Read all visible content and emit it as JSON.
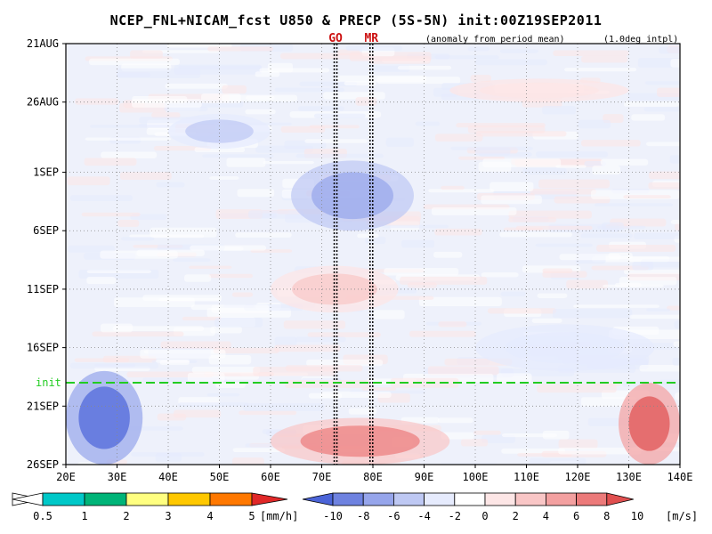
{
  "chart_data": {
    "type": "heatmap",
    "title": "NCEP_FNL+NICAM_fcst U850 & PRECP (5S-5N) init:00Z19SEP2011",
    "subtitle_left": "(anomaly from period mean)",
    "subtitle_right": "(1.0deg intpl)",
    "x_axis": {
      "range": [
        20,
        140
      ],
      "ticks": [
        {
          "value": 20,
          "label": "20E"
        },
        {
          "value": 30,
          "label": "30E"
        },
        {
          "value": 40,
          "label": "40E"
        },
        {
          "value": 50,
          "label": "50E"
        },
        {
          "value": 60,
          "label": "60E"
        },
        {
          "value": 70,
          "label": "70E"
        },
        {
          "value": 80,
          "label": "80E"
        },
        {
          "value": 90,
          "label": "90E"
        },
        {
          "value": 100,
          "label": "100E"
        },
        {
          "value": 110,
          "label": "110E"
        },
        {
          "value": 120,
          "label": "120E"
        },
        {
          "value": 130,
          "label": "130E"
        },
        {
          "value": 140,
          "label": "140E"
        }
      ]
    },
    "y_axis": {
      "range_days": [
        0,
        36
      ],
      "ticks": [
        {
          "value": 0,
          "label": "21AUG"
        },
        {
          "value": 5,
          "label": "26AUG"
        },
        {
          "value": 11,
          "label": "1SEP"
        },
        {
          "value": 16,
          "label": "6SEP"
        },
        {
          "value": 21,
          "label": "11SEP"
        },
        {
          "value": 26,
          "label": "16SEP"
        },
        {
          "value": 31,
          "label": "21SEP"
        },
        {
          "value": 36,
          "label": "26SEP"
        }
      ]
    },
    "init_line": {
      "label": "init",
      "value": 29,
      "color": "#22cc22"
    },
    "vertical_markers": [
      {
        "label": "GO",
        "lon": 72.7,
        "color": "#cc1111"
      },
      {
        "label": "MR",
        "lon": 79.7,
        "color": "#cc1111"
      }
    ],
    "wind_anomaly_features": [
      {
        "lon": [
          20,
          35
        ],
        "day": [
          28,
          36
        ],
        "value": -10
      },
      {
        "lon": [
          64,
          88
        ],
        "day": [
          10,
          16
        ],
        "value": -7
      },
      {
        "lon": [
          40,
          60
        ],
        "day": [
          6,
          9
        ],
        "value": -5
      },
      {
        "lon": [
          100,
          135
        ],
        "day": [
          24,
          28
        ],
        "value": -3
      },
      {
        "lon": [
          60,
          95
        ],
        "day": [
          32,
          36
        ],
        "value": 8
      },
      {
        "lon": [
          128,
          140
        ],
        "day": [
          29,
          36
        ],
        "value": 10
      },
      {
        "lon": [
          60,
          85
        ],
        "day": [
          19,
          23
        ],
        "value": 4
      },
      {
        "lon": [
          95,
          130
        ],
        "day": [
          3,
          5
        ],
        "value": 2
      }
    ],
    "precip_colorbar": {
      "unit": "[mm/h]",
      "ticks": [
        "0.5",
        "1",
        "2",
        "3",
        "4",
        "5"
      ],
      "colors": [
        "#00c8c8",
        "#00b478",
        "#ffff80",
        "#ffc800",
        "#ff7800",
        "#e02828"
      ]
    },
    "wind_colorbar": {
      "unit": "[m/s]",
      "ticks": [
        "-10",
        "-8",
        "-6",
        "-4",
        "-2",
        "0",
        "2",
        "4",
        "6",
        "8",
        "10"
      ],
      "colors": [
        "#4b64d8",
        "#6e82e0",
        "#96a5eb",
        "#bec8f3",
        "#e6ebfd",
        "#ffffff",
        "#fde6e6",
        "#f9c6c6",
        "#f3a0a0",
        "#ec7a7a",
        "#e04f4f"
      ]
    },
    "grid": true
  }
}
